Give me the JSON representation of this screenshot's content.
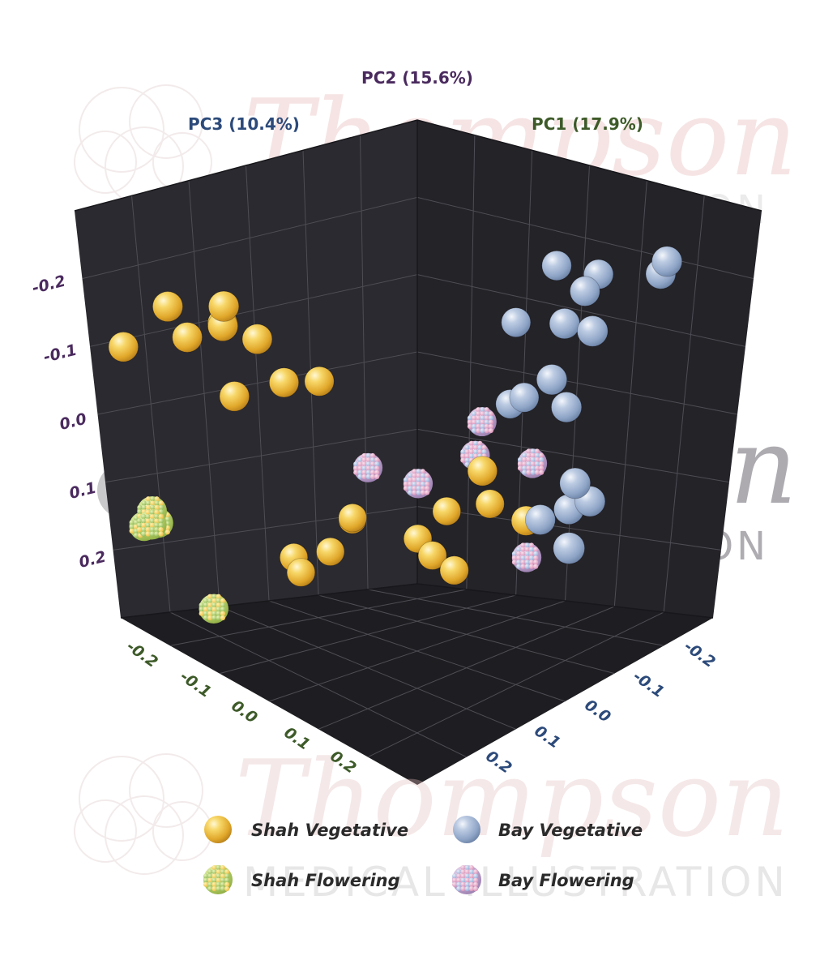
{
  "watermark": {
    "name": "Thompson",
    "subtitle": "MEDICAL ILLUSTRATION"
  },
  "colors": {
    "shah_vegetative": "#f2c449",
    "bay_vegetative": "#a7b9d6",
    "shah_flowering": "#b7d273",
    "bay_flowering": "#c8a6cf",
    "panel_dark": "#1e1e22",
    "panel_mid": "#2b2a2f",
    "panel_floor": "#232226",
    "grid": "#55545a",
    "pc1_label": "#3d5a28",
    "pc2_label": "#4a2a5e",
    "pc3_label": "#2c4a7a"
  },
  "chart_data": {
    "type": "scatter",
    "dimensions": 3,
    "axes": {
      "pc1": {
        "label": "PC1 (17.9%)",
        "range": [
          -0.25,
          0.25
        ],
        "ticks": [
          "-0.2",
          "-0.1",
          "0.0",
          "0.1",
          "0.2"
        ]
      },
      "pc2": {
        "label": "PC2 (15.6%)",
        "range": [
          -0.25,
          0.25
        ],
        "ticks": [
          "-0.2",
          "-0.1",
          "0.0",
          "0.1",
          "0.2"
        ]
      },
      "pc3": {
        "label": "PC3 (10.4%)",
        "range": [
          -0.25,
          0.25
        ],
        "ticks": [
          "-0.2",
          "-0.1",
          "0.0",
          "0.1",
          "0.2"
        ]
      }
    },
    "grid": true,
    "legend_position": "bottom",
    "series": [
      {
        "name": "Shah Vegetative",
        "marker": "smooth",
        "points": [
          {
            "pc1": -0.2,
            "pc2": -0.17,
            "pc3": 0.08
          },
          {
            "pc1": -0.22,
            "pc2": -0.16,
            "pc3": 0.14
          },
          {
            "pc1": -0.18,
            "pc2": -0.14,
            "pc3": 0.1
          },
          {
            "pc1": -0.19,
            "pc2": -0.12,
            "pc3": 0.14
          },
          {
            "pc1": -0.15,
            "pc2": -0.13,
            "pc3": 0.13
          },
          {
            "pc1": -0.14,
            "pc2": -0.12,
            "pc3": 0.09
          },
          {
            "pc1": -0.22,
            "pc2": -0.1,
            "pc3": 0.2
          },
          {
            "pc1": -0.14,
            "pc2": -0.05,
            "pc3": 0.12
          },
          {
            "pc1": -0.06,
            "pc2": -0.06,
            "pc3": 0.08
          },
          {
            "pc1": -0.09,
            "pc2": -0.06,
            "pc3": 0.1
          },
          {
            "pc1": 0.04,
            "pc2": 0.03,
            "pc3": -0.05
          },
          {
            "pc1": 0.08,
            "pc2": 0.09,
            "pc3": -0.07
          },
          {
            "pc1": 0.12,
            "pc2": 0.1,
            "pc3": 0.02
          },
          {
            "pc1": 0.12,
            "pc2": 0.12,
            "pc3": 0.08
          },
          {
            "pc1": 0.1,
            "pc2": 0.15,
            "pc3": 0.1
          },
          {
            "pc1": 0.09,
            "pc2": 0.16,
            "pc3": 0.07
          },
          {
            "pc1": 0.09,
            "pc2": 0.17,
            "pc3": 0.04
          },
          {
            "pc1": 0.06,
            "pc2": 0.13,
            "pc3": 0.15
          },
          {
            "pc1": 0.08,
            "pc2": 0.14,
            "pc3": 0.17
          },
          {
            "pc1": 0.05,
            "pc2": 0.17,
            "pc3": 0.17
          },
          {
            "pc1": 0.03,
            "pc2": 0.18,
            "pc3": 0.2
          },
          {
            "pc1": 0.02,
            "pc2": 0.19,
            "pc3": 0.18
          }
        ]
      },
      {
        "name": "Bay Vegetative",
        "marker": "smooth",
        "points": [
          {
            "pc1": 0.15,
            "pc2": -0.19,
            "pc3": -0.2
          },
          {
            "pc1": 0.14,
            "pc2": -0.21,
            "pc3": -0.22
          },
          {
            "pc1": 0.1,
            "pc2": -0.19,
            "pc3": -0.1
          },
          {
            "pc1": 0.13,
            "pc2": -0.18,
            "pc3": -0.13
          },
          {
            "pc1": 0.1,
            "pc2": -0.17,
            "pc3": -0.14
          },
          {
            "pc1": 0.05,
            "pc2": -0.15,
            "pc3": -0.2
          },
          {
            "pc1": 0.05,
            "pc2": -0.15,
            "pc3": -0.16
          },
          {
            "pc1": 0.09,
            "pc2": -0.12,
            "pc3": -0.05
          },
          {
            "pc1": 0.04,
            "pc2": -0.09,
            "pc3": -0.15
          },
          {
            "pc1": 0.05,
            "pc2": -0.06,
            "pc3": -0.16
          },
          {
            "pc1": 0.09,
            "pc2": -0.04,
            "pc3": -0.06
          },
          {
            "pc1": 0.11,
            "pc2": -0.02,
            "pc3": -0.02
          },
          {
            "pc1": 0.03,
            "pc2": 0.01,
            "pc3": -0.19
          },
          {
            "pc1": 0.06,
            "pc2": 0.04,
            "pc3": -0.18
          },
          {
            "pc1": 0.07,
            "pc2": 0.06,
            "pc3": -0.14
          },
          {
            "pc1": -0.03,
            "pc2": 0.05,
            "pc3": -0.24
          },
          {
            "pc1": 0.05,
            "pc2": 0.07,
            "pc3": -0.12
          }
        ]
      },
      {
        "name": "Shah Flowering",
        "marker": "cluster",
        "points": [
          {
            "pc1": -0.2,
            "pc2": 0.08,
            "pc3": 0.17
          },
          {
            "pc1": -0.2,
            "pc2": 0.1,
            "pc3": 0.18
          },
          {
            "pc1": -0.18,
            "pc2": 0.1,
            "pc3": 0.18
          },
          {
            "pc1": -0.21,
            "pc2": 0.09,
            "pc3": 0.16
          },
          {
            "pc1": -0.14,
            "pc2": 0.19,
            "pc3": 0.14
          }
        ]
      },
      {
        "name": "Bay Flowering",
        "marker": "cluster",
        "points": [
          {
            "pc1": 0.07,
            "pc2": -0.01,
            "pc3": -0.02
          },
          {
            "pc1": 0.09,
            "pc2": 0.03,
            "pc3": -0.07
          },
          {
            "pc1": 0.05,
            "pc2": 0.02,
            "pc3": -0.03
          },
          {
            "pc1": 0.01,
            "pc2": 0.05,
            "pc3": 0.01
          },
          {
            "pc1": -0.01,
            "pc2": 0.04,
            "pc3": 0.06
          },
          {
            "pc1": 0.08,
            "pc2": 0.13,
            "pc3": -0.07
          }
        ]
      }
    ]
  }
}
